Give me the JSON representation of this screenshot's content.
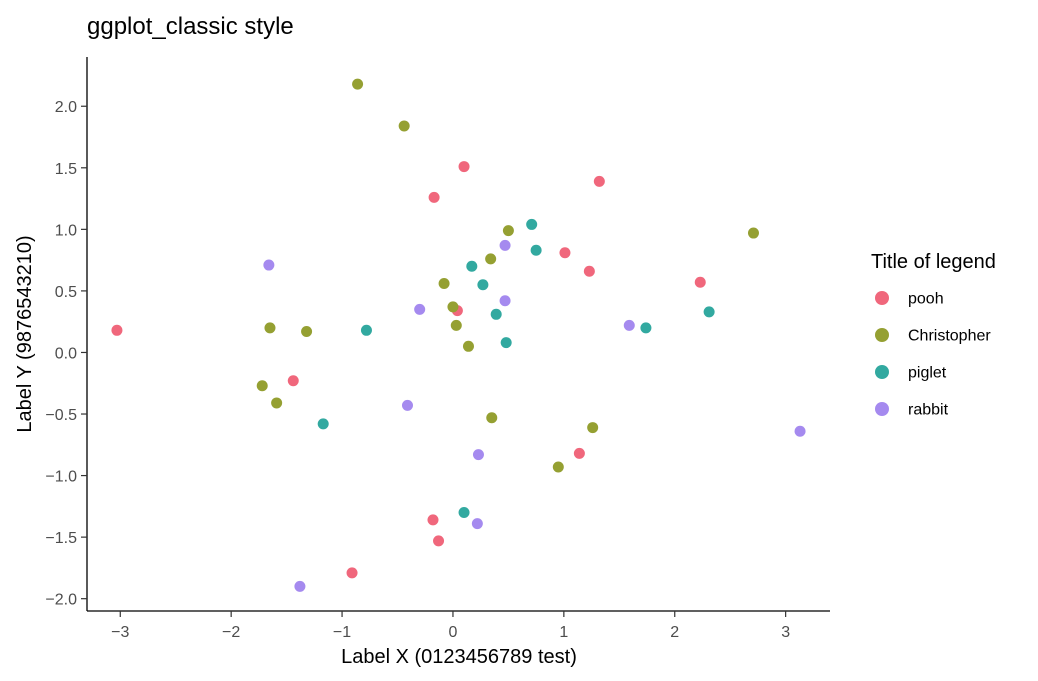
{
  "chart_data": {
    "type": "scatter",
    "title": "ggplot_classic style",
    "xlabel": "Label X (0123456789 test)",
    "ylabel": "Label Y (9876543210)",
    "xlim": [
      -3.3,
      3.4
    ],
    "ylim": [
      -2.1,
      2.4
    ],
    "x_ticks": [
      -3,
      -2,
      -1,
      0,
      1,
      2,
      3
    ],
    "x_tick_labels": [
      "−3",
      "−2",
      "−1",
      "0",
      "1",
      "2",
      "3"
    ],
    "y_ticks": [
      2.0,
      1.5,
      1.0,
      0.5,
      0.0,
      -0.5,
      -1.0,
      -1.5,
      -2.0
    ],
    "y_tick_labels": [
      "2.0",
      "1.5",
      "1.0",
      "0.5",
      "0.0",
      "−0.5",
      "−1.0",
      "−1.5",
      "−2.0"
    ],
    "grid": false,
    "legend": {
      "title": "Title of legend",
      "position": "right"
    },
    "series": [
      {
        "name": "pooh",
        "color": "#F0677C",
        "points": [
          {
            "x": -3.03,
            "y": 0.18
          },
          {
            "x": 0.1,
            "y": 1.51
          },
          {
            "x": -0.17,
            "y": 1.26
          },
          {
            "x": 1.32,
            "y": 1.39
          },
          {
            "x": 1.01,
            "y": 0.81
          },
          {
            "x": 1.23,
            "y": 0.66
          },
          {
            "x": 2.23,
            "y": 0.57
          },
          {
            "x": 0.04,
            "y": 0.34
          },
          {
            "x": -1.44,
            "y": -0.23
          },
          {
            "x": 1.14,
            "y": -0.82
          },
          {
            "x": -0.18,
            "y": -1.36
          },
          {
            "x": -0.13,
            "y": -1.53
          },
          {
            "x": -0.91,
            "y": -1.79
          }
        ]
      },
      {
        "name": "Christopher",
        "color": "#95A032",
        "points": [
          {
            "x": -0.86,
            "y": 2.18
          },
          {
            "x": -0.44,
            "y": 1.84
          },
          {
            "x": 0.5,
            "y": 0.99
          },
          {
            "x": 0.34,
            "y": 0.76
          },
          {
            "x": -0.08,
            "y": 0.56
          },
          {
            "x": 0.0,
            "y": 0.37
          },
          {
            "x": 0.03,
            "y": 0.22
          },
          {
            "x": 0.14,
            "y": 0.05
          },
          {
            "x": -1.65,
            "y": 0.2
          },
          {
            "x": -1.32,
            "y": 0.17
          },
          {
            "x": -1.72,
            "y": -0.27
          },
          {
            "x": -1.59,
            "y": -0.41
          },
          {
            "x": 0.35,
            "y": -0.53
          },
          {
            "x": 1.26,
            "y": -0.61
          },
          {
            "x": 0.95,
            "y": -0.93
          },
          {
            "x": 2.71,
            "y": 0.97
          }
        ]
      },
      {
        "name": "piglet",
        "color": "#32A9A0",
        "points": [
          {
            "x": 0.71,
            "y": 1.04
          },
          {
            "x": 0.75,
            "y": 0.83
          },
          {
            "x": 0.17,
            "y": 0.7
          },
          {
            "x": 0.27,
            "y": 0.55
          },
          {
            "x": 0.39,
            "y": 0.31
          },
          {
            "x": 0.48,
            "y": 0.08
          },
          {
            "x": -0.78,
            "y": 0.18
          },
          {
            "x": 1.74,
            "y": 0.2
          },
          {
            "x": 2.31,
            "y": 0.33
          },
          {
            "x": -1.17,
            "y": -0.58
          },
          {
            "x": 0.1,
            "y": -1.3
          }
        ]
      },
      {
        "name": "rabbit",
        "color": "#A58AEF",
        "points": [
          {
            "x": -1.66,
            "y": 0.71
          },
          {
            "x": 0.47,
            "y": 0.87
          },
          {
            "x": 0.47,
            "y": 0.42
          },
          {
            "x": -0.3,
            "y": 0.35
          },
          {
            "x": 1.59,
            "y": 0.22
          },
          {
            "x": -0.41,
            "y": -0.43
          },
          {
            "x": 0.23,
            "y": -0.83
          },
          {
            "x": 3.13,
            "y": -0.64
          },
          {
            "x": 0.22,
            "y": -1.39
          },
          {
            "x": -1.38,
            "y": -1.9
          }
        ]
      }
    ]
  }
}
